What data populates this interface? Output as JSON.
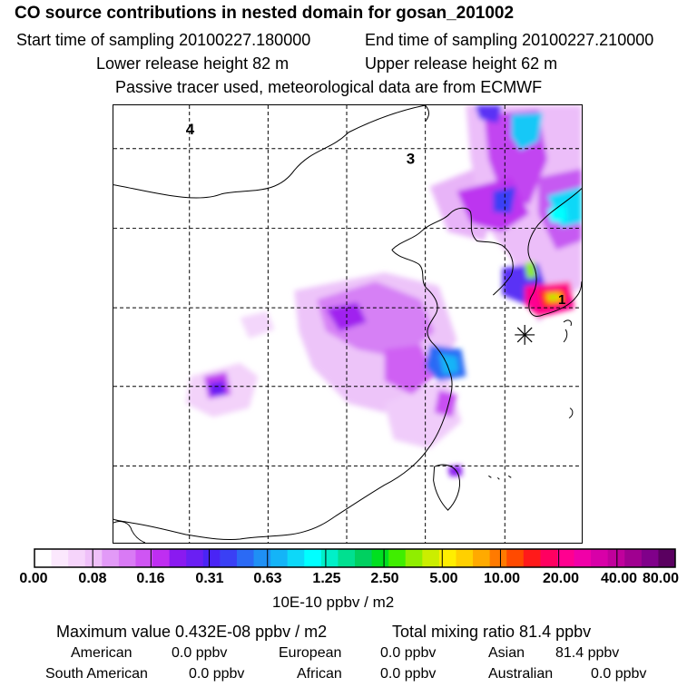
{
  "header": {
    "title": "CO  source contributions in nested domain for gosan_201002",
    "start_time": "Start time of sampling 20100227.180000",
    "end_time": "End time of sampling 20100227.210000",
    "lower_release": "Lower release height   82 m",
    "upper_release": "Upper release height   62 m",
    "tracer_note": "Passive tracer used, meteorological data are from ECMWF"
  },
  "map": {
    "region_labels": [
      "4",
      "3",
      "1"
    ],
    "receptor_marker": "gosan-receptor"
  },
  "colorbar": {
    "ticks": [
      "0.00",
      "0.08",
      "0.16",
      "0.31",
      "0.63",
      "1.25",
      "2.50",
      "5.00",
      "10.00",
      "20.00",
      "40.00",
      "80.00"
    ],
    "unit": "10E-10 ppbv / m2",
    "colors": [
      "#ffffff",
      "#fbe8fd",
      "#f6d4fb",
      "#efc0f9",
      "#e29af7",
      "#d97af5",
      "#cf55f3",
      "#bf2ef1",
      "#8a1af0",
      "#6a1ff3",
      "#4a24f5",
      "#3a40f5",
      "#2b6af5",
      "#1f90f5",
      "#14b4f7",
      "#0dd8f8",
      "#00ffff",
      "#00f0c8",
      "#00e090",
      "#00d060",
      "#00e020",
      "#40ee00",
      "#90ee00",
      "#cbee00",
      "#ffee00",
      "#ffd000",
      "#ffaa00",
      "#ff7a00",
      "#ff4a00",
      "#ff1a1a",
      "#ff0060",
      "#ff0090",
      "#f000a8",
      "#d800a8",
      "#c0009c",
      "#a00090",
      "#80008a",
      "#5a0060"
    ]
  },
  "summary": {
    "max_value": "Maximum value  0.432E-08 ppbv / m2",
    "total_mixing": "Total mixing ratio       81.4 ppbv",
    "sources": [
      {
        "name": "American",
        "value": "0.0 ppbv"
      },
      {
        "name": "European",
        "value": "0.0 ppbv"
      },
      {
        "name": "Asian",
        "value": "81.4 ppbv"
      },
      {
        "name": "South American",
        "value": "0.0 ppbv"
      },
      {
        "name": "African",
        "value": "0.0 ppbv"
      },
      {
        "name": "Australian",
        "value": "0.0 ppbv"
      }
    ]
  }
}
